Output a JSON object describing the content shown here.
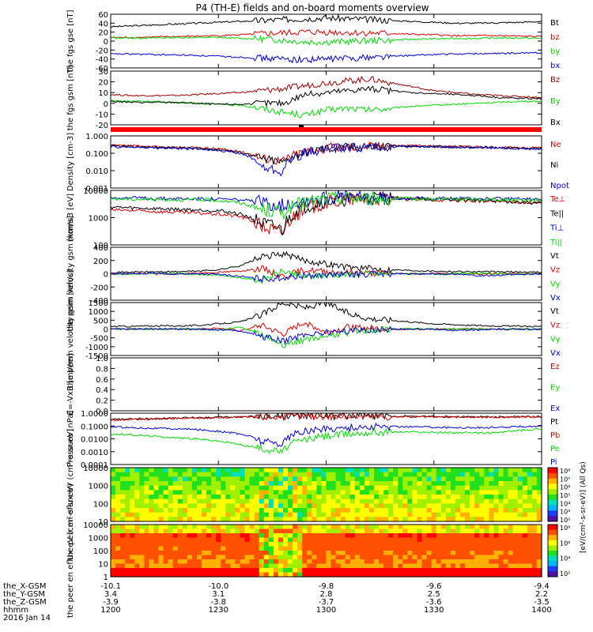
{
  "title": "P4 (TH-E) fields and on-board moments overview",
  "colors": {
    "black": "#000000",
    "red": "#e00000",
    "green": "#00dd00",
    "blue": "#0000dd",
    "darkred": "#a00000"
  },
  "ephemeris": {
    "labels": [
      "the_X-GSM",
      "the_Y-GSM",
      "the_Z-GSM",
      "hhmm",
      "2016 Jan 14"
    ],
    "columns": [
      [
        "-10.1",
        "3.4",
        "-3.9",
        "1200"
      ],
      [
        "-10.0",
        "3.1",
        "-3.8",
        "1230"
      ],
      [
        "-9.8",
        "2.8",
        "-3.7",
        "1300"
      ],
      [
        "-9.6",
        "2.5",
        "-3.6",
        "1330"
      ],
      [
        "-9.4",
        "2.2",
        "-3.5",
        "1400"
      ]
    ]
  },
  "colorbar_label": "[eV/(cm²-s-sr-eV)] (All Qs)",
  "chart_data": [
    {
      "id": "p1",
      "type": "line",
      "ylabel": "the fgs gse [nT]",
      "yticks": [
        "60",
        "40",
        "20",
        "0",
        "-20",
        "-40",
        "-60"
      ],
      "ylim": [
        -60,
        60
      ],
      "series": [
        {
          "name": "Bt",
          "color": "black",
          "values": [
            32,
            34,
            36,
            38,
            40,
            42,
            44,
            46,
            48,
            50,
            52,
            50,
            48,
            46,
            44,
            42,
            40,
            40,
            41,
            42,
            44
          ]
        },
        {
          "name": "bz",
          "color": "red",
          "values": [
            8,
            8,
            9,
            10,
            11,
            12,
            14,
            16,
            18,
            20,
            20,
            19,
            18,
            17,
            15,
            14,
            12,
            12,
            12,
            11,
            10
          ]
        },
        {
          "name": "by",
          "color": "green",
          "values": [
            7,
            7,
            7,
            8,
            8,
            8,
            6,
            5,
            2,
            -2,
            -2,
            -1,
            1,
            2,
            4,
            5,
            6,
            6,
            7,
            7,
            6
          ]
        },
        {
          "name": "bx",
          "color": "blue",
          "values": [
            -29,
            -29,
            -30,
            -31,
            -32,
            -34,
            -36,
            -38,
            -40,
            -42,
            -40,
            -38,
            -36,
            -34,
            -32,
            -30,
            -29,
            -28,
            -28,
            -27,
            -26
          ]
        }
      ]
    },
    {
      "id": "p2",
      "type": "line",
      "ylabel": "the fgs gsm [nT]",
      "yticks": [
        "30",
        "20",
        "10",
        "0",
        "-10",
        "-20"
      ],
      "ylim": [
        -25,
        30
      ],
      "series": [
        {
          "name": "Bz",
          "color": "darkred",
          "values": [
            6,
            5,
            5,
            5,
            6,
            7,
            8,
            10,
            12,
            15,
            18,
            20,
            22,
            18,
            14,
            10,
            8,
            6,
            5,
            4,
            3
          ]
        },
        {
          "name": "By",
          "color": "green",
          "values": [
            0,
            -1,
            -1,
            -2,
            -3,
            -4,
            -5,
            -8,
            -12,
            -15,
            -10,
            -8,
            -10,
            -8,
            -6,
            -5,
            -4,
            -3,
            -2,
            -1,
            -1
          ]
        },
        {
          "name": "Bx",
          "color": "black",
          "values": [
            -1,
            -2,
            -2,
            -2,
            -3,
            -4,
            -4,
            -3,
            -3,
            6,
            8,
            10,
            12,
            10,
            8,
            7,
            6,
            5,
            3,
            2,
            2
          ]
        }
      ]
    },
    {
      "id": "p3",
      "type": "line",
      "ylabel": "Density [cm-3]",
      "yticks": [
        "1.000",
        "0.100",
        "0.010",
        "0.001"
      ],
      "log": true,
      "ylim": [
        0.001,
        2
      ],
      "series": [
        {
          "name": "Ne",
          "color": "red",
          "values": [
            0.5,
            0.45,
            0.4,
            0.38,
            0.35,
            0.3,
            0.2,
            0.08,
            0.05,
            0.2,
            0.35,
            0.4,
            0.45,
            0.5,
            0.48,
            0.45,
            0.42,
            0.4,
            0.38,
            0.36,
            0.35
          ]
        },
        {
          "name": "Ni",
          "color": "black",
          "values": [
            0.45,
            0.42,
            0.38,
            0.35,
            0.32,
            0.28,
            0.18,
            0.07,
            0.04,
            0.18,
            0.32,
            0.38,
            0.42,
            0.45,
            0.44,
            0.42,
            0.4,
            0.38,
            0.36,
            0.34,
            0.33
          ]
        },
        {
          "name": "Npot",
          "color": "blue",
          "values": [
            0.4,
            0.38,
            0.35,
            0.33,
            0.3,
            0.25,
            0.15,
            0.02,
            0.01,
            0.15,
            0.3,
            0.36,
            0.4,
            0.42,
            0.42,
            0.4,
            0.38,
            0.36,
            0.34,
            0.32,
            0.3
          ]
        }
      ]
    },
    {
      "id": "p4",
      "type": "line",
      "ylabel": "moms3 [eV]",
      "yticks": [
        "10000",
        "1000",
        "100"
      ],
      "log": true,
      "ylim": [
        50,
        10000
      ],
      "series": [
        {
          "name": "Te⊥",
          "color": "red",
          "values": [
            1500,
            1400,
            1300,
            1200,
            1100,
            1000,
            800,
            300,
            150,
            1500,
            3000,
            4000,
            4500,
            4500,
            4200,
            4000,
            3800,
            3600,
            3400,
            3200,
            3000
          ]
        },
        {
          "name": "Te||",
          "color": "black",
          "values": [
            2000,
            1800,
            1700,
            1600,
            1500,
            1400,
            1000,
            400,
            200,
            2000,
            3500,
            4200,
            4800,
            4800,
            4500,
            4200,
            4000,
            3800,
            3500,
            3200,
            2800
          ]
        },
        {
          "name": "Ti⊥",
          "color": "blue",
          "values": [
            5000,
            4800,
            4600,
            4500,
            4400,
            4300,
            4000,
            3000,
            2500,
            4000,
            5000,
            5200,
            5000,
            4800,
            4700,
            4600,
            4500,
            4500,
            4400,
            4300,
            4200
          ]
        },
        {
          "name": "Ti||",
          "color": "green",
          "values": [
            4500,
            4300,
            4200,
            4100,
            4000,
            3800,
            3000,
            1500,
            1200,
            3000,
            4500,
            4800,
            4600,
            4500,
            4400,
            4300,
            4200,
            4200,
            4100,
            4000,
            3900
          ]
        }
      ]
    },
    {
      "id": "p5",
      "type": "line",
      "ylabel": "the peim velocity gsm [km/s]",
      "yticks": [
        "400",
        "200",
        "0",
        "-200",
        "-400"
      ],
      "ylim": [
        -400,
        400
      ],
      "series": [
        {
          "name": "Vt",
          "color": "black",
          "values": [
            20,
            25,
            30,
            30,
            40,
            60,
            120,
            250,
            300,
            200,
            150,
            100,
            80,
            60,
            50,
            40,
            35,
            30,
            30,
            25,
            25
          ]
        },
        {
          "name": "Vz",
          "color": "red",
          "values": [
            0,
            5,
            0,
            -5,
            10,
            20,
            40,
            80,
            -40,
            60,
            30,
            20,
            10,
            5,
            0,
            5,
            0,
            -5,
            0,
            5,
            0
          ]
        },
        {
          "name": "Vy",
          "color": "green",
          "values": [
            0,
            -5,
            0,
            5,
            -10,
            -20,
            -60,
            -100,
            40,
            -50,
            -20,
            -10,
            0,
            5,
            0,
            -5,
            0,
            5,
            0,
            -5,
            0
          ]
        },
        {
          "name": "Vx",
          "color": "blue",
          "values": [
            0,
            0,
            5,
            -5,
            0,
            -10,
            -40,
            -80,
            -60,
            -30,
            -20,
            -10,
            -5,
            0,
            -5,
            0,
            -10,
            -30,
            -20,
            -10,
            -5
          ]
        }
      ]
    },
    {
      "id": "p6",
      "type": "line",
      "ylabel": "the peem velocity gsm [km/s]",
      "yticks": [
        "1500",
        "1000",
        "500",
        "0",
        "-500",
        "-1000",
        "-1500"
      ],
      "ylim": [
        -1500,
        1500
      ],
      "series": [
        {
          "name": "Vt",
          "color": "black",
          "values": [
            150,
            150,
            180,
            180,
            200,
            300,
            400,
            800,
            1500,
            1200,
            1500,
            900,
            600,
            500,
            400,
            300,
            250,
            200,
            180,
            160,
            150
          ]
        },
        {
          "name": "Vz",
          "color": "red",
          "values": [
            0,
            0,
            20,
            -20,
            0,
            50,
            -100,
            200,
            -300,
            400,
            -200,
            100,
            50,
            0,
            -20,
            0,
            20,
            0,
            -10,
            0,
            0
          ]
        },
        {
          "name": "Vy",
          "color": "green",
          "values": [
            0,
            0,
            -20,
            20,
            0,
            -50,
            100,
            -300,
            -900,
            -600,
            -400,
            -200,
            -100,
            0,
            20,
            0,
            -20,
            0,
            10,
            0,
            0
          ]
        },
        {
          "name": "Vx",
          "color": "blue",
          "values": [
            0,
            0,
            10,
            -10,
            0,
            -40,
            -100,
            -400,
            -700,
            -300,
            -200,
            -100,
            -50,
            0,
            -10,
            0,
            -100,
            -50,
            -20,
            -10,
            0
          ]
        }
      ]
    },
    {
      "id": "p7",
      "type": "line",
      "ylabel": "E=-VxB [mV/m]",
      "yticks": [
        "1.0",
        "0.8",
        "0.6",
        "0.4",
        "0.2",
        "0.0"
      ],
      "ylim": [
        0,
        1
      ],
      "series": [
        {
          "name": "Ez",
          "color": "red",
          "values": []
        },
        {
          "name": "Ey",
          "color": "green",
          "values": []
        },
        {
          "name": "Ex",
          "color": "blue",
          "values": []
        }
      ]
    },
    {
      "id": "p8",
      "type": "line",
      "ylabel": "Pressure [nPa]",
      "yticks": [
        "1.0000",
        "0.1000",
        "0.0100",
        "0.0010",
        "0.0001"
      ],
      "log": true,
      "ylim": [
        0.0001,
        1.5
      ],
      "series": [
        {
          "name": "Pt",
          "color": "black",
          "values": [
            0.45,
            0.5,
            0.55,
            0.6,
            0.65,
            0.7,
            0.75,
            0.8,
            0.85,
            0.9,
            0.9,
            0.88,
            0.86,
            0.84,
            0.82,
            0.8,
            0.78,
            0.76,
            0.75,
            0.75,
            0.8
          ]
        },
        {
          "name": "Pb",
          "color": "red",
          "values": [
            0.4,
            0.45,
            0.5,
            0.55,
            0.6,
            0.65,
            0.7,
            0.75,
            0.8,
            0.85,
            0.85,
            0.82,
            0.8,
            0.78,
            0.76,
            0.74,
            0.72,
            0.7,
            0.7,
            0.72,
            0.75
          ]
        },
        {
          "name": "Pe",
          "color": "green",
          "values": [
            0.03,
            0.025,
            0.02,
            0.015,
            0.012,
            0.008,
            0.004,
            0.002,
            0.001,
            0.01,
            0.02,
            0.03,
            0.04,
            0.045,
            0.045,
            0.04,
            0.04,
            0.035,
            0.04,
            0.06,
            0.08
          ]
        },
        {
          "name": "Pi",
          "color": "blue",
          "values": [
            0.12,
            0.1,
            0.09,
            0.08,
            0.07,
            0.05,
            0.03,
            0.008,
            0.005,
            0.05,
            0.08,
            0.1,
            0.11,
            0.12,
            0.12,
            0.11,
            0.1,
            0.1,
            0.1,
            0.12,
            0.14
          ]
        }
      ]
    },
    {
      "id": "p9",
      "type": "heatmap",
      "ylabel": "the peir en eflux eV (cm²-s-sr-eV)",
      "yticks": [
        "10000",
        "1000",
        "100",
        "10"
      ]
    },
    {
      "id": "p10",
      "type": "heatmap",
      "ylabel": "the peer en eflux eV (cm²-s-sr-eV)",
      "yticks": [
        "10000",
        "1000",
        "100",
        "10",
        "1"
      ]
    }
  ],
  "colorbar_ticks": [
    "10⁸",
    "10⁷",
    "10⁶",
    "10⁵",
    "10⁴",
    "10³",
    "10²"
  ],
  "colorbar_ticks2": [
    "10⁸",
    "10⁶",
    "10⁴",
    "10²"
  ]
}
